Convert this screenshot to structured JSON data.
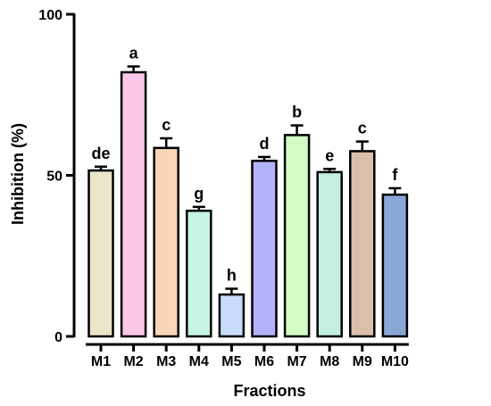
{
  "chart_data": {
    "type": "bar",
    "title": "",
    "xlabel": "Fractions",
    "ylabel": "Inhibition (%)",
    "ylim": [
      0,
      100
    ],
    "yticks": [
      0,
      50,
      100
    ],
    "grid": false,
    "legend": "none",
    "categories": [
      "M1",
      "M2",
      "M3",
      "M4",
      "M5",
      "M6",
      "M7",
      "M8",
      "M9",
      "M10"
    ],
    "values": [
      51.5,
      82,
      58.5,
      39,
      13,
      54.5,
      62.5,
      51,
      57.5,
      44
    ],
    "errors": [
      1.2,
      1.8,
      3,
      1.2,
      1.8,
      1.2,
      3,
      1,
      3,
      2
    ],
    "significance_labels": [
      "de",
      "a",
      "c",
      "g",
      "h",
      "d",
      "b",
      "e",
      "c",
      "f"
    ],
    "colors": [
      "#ebe6c9",
      "#fbc6e8",
      "#fad6b7",
      "#c8f5e4",
      "#c7dcf8",
      "#b4b2f8",
      "#d4fbc4",
      "#c4eedd",
      "#dbbfaa",
      "#88a6d6"
    ]
  }
}
